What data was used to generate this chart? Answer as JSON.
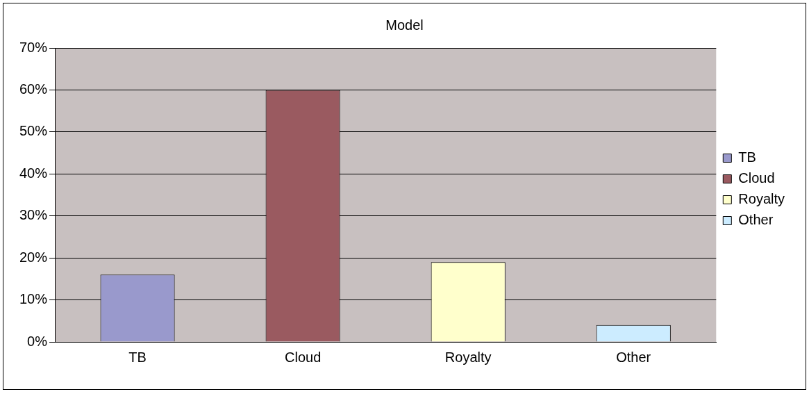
{
  "chart_data": {
    "type": "bar",
    "title": "Model",
    "categories": [
      "TB",
      "Cloud",
      "Royalty",
      "Other"
    ],
    "series": [
      {
        "name": "TB",
        "color": "#9999cc",
        "values": [
          16,
          null,
          null,
          null
        ]
      },
      {
        "name": "Cloud",
        "color": "#9a5a60",
        "values": [
          null,
          60,
          null,
          null
        ]
      },
      {
        "name": "Royalty",
        "color": "#ffffcc",
        "values": [
          null,
          null,
          19,
          null
        ]
      },
      {
        "name": "Other",
        "color": "#ccecff",
        "values": [
          null,
          null,
          null,
          4
        ]
      }
    ],
    "ylim": [
      0,
      70
    ],
    "yticks": [
      {
        "value": 0,
        "label": "0%"
      },
      {
        "value": 10,
        "label": "10%"
      },
      {
        "value": 20,
        "label": "20%"
      },
      {
        "value": 30,
        "label": "30%"
      },
      {
        "value": 40,
        "label": "40%"
      },
      {
        "value": 50,
        "label": "50%"
      },
      {
        "value": 60,
        "label": "60%"
      },
      {
        "value": 70,
        "label": "70%"
      }
    ],
    "grid": "y",
    "legend": "right"
  }
}
